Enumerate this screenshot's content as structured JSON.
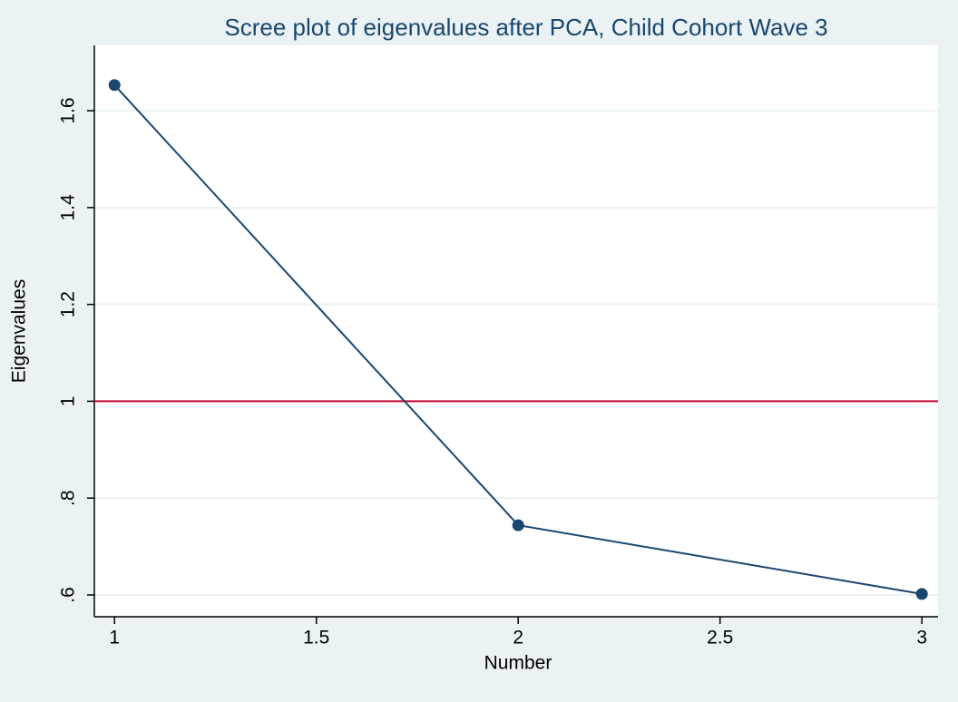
{
  "chart_data": {
    "type": "line",
    "title": "Scree plot of eigenvalues after PCA, Child Cohort Wave 3",
    "xlabel": "Number",
    "ylabel": "Eigenvalues",
    "x": [
      1,
      2,
      3
    ],
    "series": [
      {
        "color": "#1a476f",
        "values": [
          1.653,
          0.744,
          0.602
        ]
      }
    ],
    "reference_line": {
      "value": 1,
      "color": "#c10534"
    },
    "xlim": [
      0.95,
      3.04
    ],
    "xticks": [
      1,
      1.5,
      2,
      2.5,
      3
    ],
    "ylim": [
      0.555,
      1.735
    ],
    "yticks": [
      {
        "value": 0.6,
        "label": ".6"
      },
      {
        "value": 0.8,
        "label": ".8"
      },
      1,
      1.2,
      1.4,
      1.6
    ],
    "grid": true
  }
}
